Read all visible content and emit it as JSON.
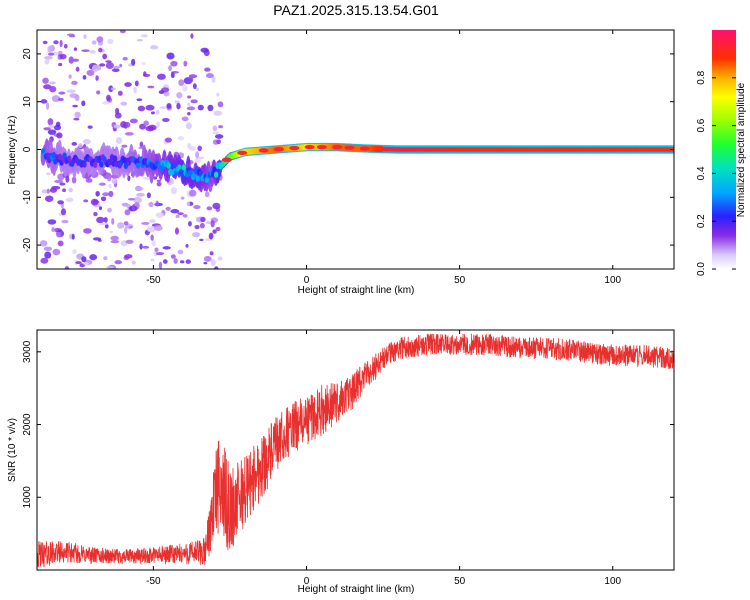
{
  "title": "PAZ1.2025.315.13.54.G01",
  "chart_data": [
    {
      "type": "heatmap",
      "xlabel": "Height of straight line (km)",
      "ylabel": "Frequency (Hz)",
      "xlim": [
        -88,
        120
      ],
      "ylim": [
        -25,
        25
      ],
      "x_ticks": [
        -50,
        0,
        50,
        100
      ],
      "x_tick_labels": [
        "-50",
        "0",
        "50",
        "100"
      ],
      "y_ticks": [
        -20,
        -10,
        0,
        10,
        20
      ],
      "y_tick_labels": [
        "-20",
        "-10",
        "0",
        "10",
        "20"
      ],
      "colorbar": {
        "label": "Normalized spectral amplitude",
        "range": [
          0,
          1
        ],
        "ticks": [
          0,
          0.2,
          0.4,
          0.6,
          0.8
        ],
        "tick_labels": [
          "0.0",
          "0.2",
          "0.4",
          "0.6",
          "0.8"
        ]
      },
      "ridge": {
        "description_points_height_km": [
          -86,
          -80,
          -70,
          -60,
          -50,
          -40,
          -35,
          -31,
          -25,
          -20,
          -10,
          0,
          10,
          20,
          30,
          50,
          80,
          120
        ],
        "frequency_hz": [
          -1.0,
          -2.0,
          -2.5,
          -2.5,
          -3.0,
          -4.5,
          -5.5,
          -5.5,
          -1.5,
          -0.5,
          0.0,
          0.5,
          0.5,
          0.2,
          0.0,
          0.0,
          0.0,
          0.0
        ],
        "amplitude": [
          0.25,
          0.2,
          0.2,
          0.2,
          0.25,
          0.35,
          0.3,
          0.25,
          0.55,
          0.75,
          0.85,
          0.75,
          0.85,
          0.85,
          0.95,
          0.9,
          0.9,
          0.9
        ]
      }
    },
    {
      "type": "line",
      "xlabel": "Height of straight line (km)",
      "ylabel": "SNR (10 * v/v)",
      "xlim": [
        -88,
        120
      ],
      "ylim": [
        0,
        3300
      ],
      "x_ticks": [
        -50,
        0,
        50,
        100
      ],
      "x_tick_labels": [
        "-50",
        "0",
        "50",
        "100"
      ],
      "y_ticks": [
        1000,
        2000,
        3000
      ],
      "y_tick_labels": [
        "1000",
        "2000",
        "3000"
      ],
      "color": "#e8302e",
      "series": [
        {
          "name": "SNR",
          "x": [
            -88,
            -80,
            -70,
            -60,
            -50,
            -40,
            -33,
            -30,
            -28,
            -25,
            -20,
            -15,
            -10,
            -5,
            0,
            5,
            10,
            15,
            20,
            25,
            30,
            40,
            50,
            60,
            70,
            80,
            90,
            100,
            110,
            120
          ],
          "values": [
            200,
            250,
            200,
            180,
            200,
            220,
            250,
            1000,
            1200,
            800,
            1100,
            1400,
            1700,
            1950,
            2050,
            2200,
            2300,
            2450,
            2700,
            2900,
            3050,
            3100,
            3100,
            3100,
            3050,
            3050,
            3000,
            2950,
            2950,
            2900
          ],
          "noise_amplitude": [
            200,
            150,
            120,
            100,
            120,
            150,
            200,
            600,
            700,
            600,
            500,
            450,
            400,
            350,
            350,
            350,
            300,
            250,
            200,
            180,
            150,
            150,
            150,
            150,
            150,
            150,
            150,
            150,
            150,
            150
          ]
        }
      ]
    }
  ]
}
